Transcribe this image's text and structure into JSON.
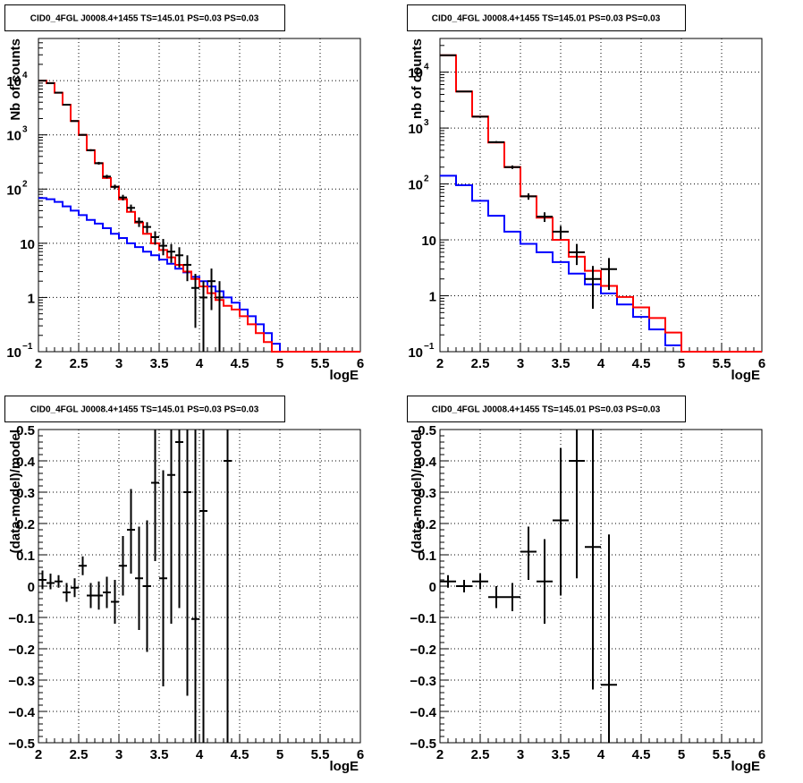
{
  "chart_data": [
    {
      "id": "p1",
      "type": "step-histogram",
      "title": "CID0_4FGL J0008.4+1455 TS=145.01 PS=0.03 PS=0.03",
      "xlabel": "logE",
      "ylabel": "Nb of counts",
      "xlim": [
        2,
        6
      ],
      "ylim": [
        0.1,
        60000
      ],
      "yscale": "log",
      "grid": true,
      "x_ticks": [
        "2",
        "2.5",
        "3",
        "3.5",
        "4",
        "4.5",
        "5",
        "5.5",
        "6"
      ],
      "y_ticks": [
        {
          "v": 0.1,
          "base": "10",
          "exp": "−1"
        },
        {
          "v": 1,
          "label": "1"
        },
        {
          "v": 10,
          "label": "10"
        },
        {
          "v": 100,
          "base": "10",
          "exp": "2"
        },
        {
          "v": 1000,
          "base": "10",
          "exp": "3"
        },
        {
          "v": 10000,
          "base": "10",
          "exp": "4"
        }
      ],
      "bin_edges": [
        2.0,
        2.1,
        2.2,
        2.3,
        2.4,
        2.5,
        2.6,
        2.7,
        2.8,
        2.9,
        3.0,
        3.1,
        3.2,
        3.3,
        3.4,
        3.5,
        3.6,
        3.7,
        3.8,
        3.9,
        4.0,
        4.1,
        4.2,
        4.3,
        4.4,
        4.5,
        4.6,
        4.7,
        4.8,
        4.9,
        5.0,
        5.1,
        5.2,
        5.3,
        5.4,
        5.5,
        5.6,
        5.7,
        5.8,
        5.9,
        6.0
      ],
      "series": [
        {
          "color": "#ff0000",
          "values": [
            10000,
            9000,
            6000,
            3600,
            1800,
            1000,
            520,
            300,
            160,
            110,
            65,
            38,
            24,
            15,
            10,
            7.5,
            5.5,
            4,
            3,
            2.2,
            1.6,
            1.2,
            0.9,
            0.7,
            0.6,
            0.45,
            0.32,
            0.22,
            0.15,
            0.1,
            0.1,
            0.1,
            0.1,
            0.1,
            0.1,
            0.1,
            0.1,
            0.1,
            0.1,
            0.1
          ]
        },
        {
          "color": "#0000ff",
          "values": [
            68,
            65,
            58,
            48,
            40,
            33,
            27,
            23,
            19,
            15,
            12.5,
            10,
            8.5,
            7,
            6,
            5,
            4.2,
            3.4,
            2.9,
            2.4,
            2,
            1.6,
            1.3,
            1,
            0.8,
            0.6,
            0.45,
            0.32,
            0.22,
            0.14,
            0.1,
            0.1,
            0.1,
            0.1,
            0.1,
            0.1,
            0.1,
            0.1,
            0.1,
            0.1
          ]
        }
      ],
      "points": [
        {
          "x": 2.05,
          "y": 10000
        },
        {
          "x": 2.15,
          "y": 9000
        },
        {
          "x": 2.25,
          "y": 6000
        },
        {
          "x": 2.35,
          "y": 3600
        },
        {
          "x": 2.45,
          "y": 1800
        },
        {
          "x": 2.55,
          "y": 1000
        },
        {
          "x": 2.65,
          "y": 520
        },
        {
          "x": 2.75,
          "y": 300
        },
        {
          "x": 2.85,
          "y": 170
        },
        {
          "x": 2.95,
          "y": 110
        },
        {
          "x": 3.05,
          "y": 70
        },
        {
          "x": 3.15,
          "y": 45
        },
        {
          "x": 3.25,
          "y": 25
        },
        {
          "x": 3.35,
          "y": 20
        },
        {
          "x": 3.45,
          "y": 13
        },
        {
          "x": 3.55,
          "y": 9
        },
        {
          "x": 3.65,
          "y": 7
        },
        {
          "x": 3.75,
          "y": 6
        },
        {
          "x": 3.85,
          "y": 4
        },
        {
          "x": 3.95,
          "y": 1.5
        },
        {
          "x": 4.05,
          "y": 1
        },
        {
          "x": 4.15,
          "y": 2
        },
        {
          "x": 4.25,
          "y": 1
        }
      ]
    },
    {
      "id": "p2",
      "type": "step-histogram",
      "title": "CID0_4FGL J0008.4+1455 TS=145.01 PS=0.03 PS=0.03",
      "xlabel": "logE",
      "ylabel": "nb of counts",
      "xlim": [
        2,
        6
      ],
      "ylim": [
        0.1,
        40000
      ],
      "yscale": "log",
      "grid": true,
      "x_ticks": [
        "2",
        "2.5",
        "3",
        "3.5",
        "4",
        "4.5",
        "5",
        "5.5",
        "6"
      ],
      "y_ticks": [
        {
          "v": 0.1,
          "base": "10",
          "exp": "−1"
        },
        {
          "v": 1,
          "label": "1"
        },
        {
          "v": 10,
          "label": "10"
        },
        {
          "v": 100,
          "base": "10",
          "exp": "2"
        },
        {
          "v": 1000,
          "base": "10",
          "exp": "3"
        },
        {
          "v": 10000,
          "base": "10",
          "exp": "4"
        }
      ],
      "bin_edges": [
        2.0,
        2.2,
        2.4,
        2.6,
        2.8,
        3.0,
        3.2,
        3.4,
        3.6,
        3.8,
        4.0,
        4.2,
        4.4,
        4.6,
        4.8,
        5.0,
        5.2,
        5.4,
        5.6,
        5.8,
        6.0
      ],
      "series": [
        {
          "color": "#ff0000",
          "values": [
            20000,
            4500,
            1600,
            550,
            200,
            60,
            25,
            10,
            5,
            2.8,
            1.5,
            0.95,
            0.62,
            0.4,
            0.22,
            0.1,
            0.1,
            0.1,
            0.1,
            0.1
          ]
        },
        {
          "color": "#0000ff",
          "values": [
            140,
            95,
            50,
            27,
            14,
            8.5,
            6,
            4,
            2.5,
            1.6,
            1.1,
            0.7,
            0.42,
            0.25,
            0.13,
            0.1,
            0.1,
            0.1,
            0.1,
            0.1
          ]
        }
      ],
      "points": [
        {
          "x": 2.1,
          "y": 20000
        },
        {
          "x": 2.3,
          "y": 4500
        },
        {
          "x": 2.5,
          "y": 1600
        },
        {
          "x": 2.7,
          "y": 560
        },
        {
          "x": 2.9,
          "y": 200
        },
        {
          "x": 3.1,
          "y": 60
        },
        {
          "x": 3.3,
          "y": 26
        },
        {
          "x": 3.5,
          "y": 14
        },
        {
          "x": 3.7,
          "y": 6
        },
        {
          "x": 3.9,
          "y": 2
        },
        {
          "x": 4.1,
          "y": 3
        }
      ]
    },
    {
      "id": "p3",
      "type": "scatter-errorbar",
      "title": "CID0_4FGL J0008.4+1455 TS=145.01 PS=0.03 PS=0.03",
      "xlabel": "logE",
      "ylabel": "(data-model)/model",
      "xlim": [
        2,
        6
      ],
      "ylim": [
        -0.5,
        0.5
      ],
      "grid": true,
      "x_ticks": [
        "2",
        "2.5",
        "3",
        "3.5",
        "4",
        "4.5",
        "5",
        "5.5",
        "6"
      ],
      "y_ticks": [
        {
          "v": -0.5,
          "label": "−0.5"
        },
        {
          "v": -0.4,
          "label": "−0.4"
        },
        {
          "v": -0.3,
          "label": "−0.3"
        },
        {
          "v": -0.2,
          "label": "−0.2"
        },
        {
          "v": -0.1,
          "label": "−0.1"
        },
        {
          "v": 0,
          "label": "0"
        },
        {
          "v": 0.1,
          "label": "0.1"
        },
        {
          "v": 0.2,
          "label": "0.2"
        },
        {
          "v": 0.3,
          "label": "0.3"
        },
        {
          "v": 0.4,
          "label": "0.4"
        },
        {
          "v": 0.5,
          "label": "0.5"
        }
      ],
      "xerr": 0.05,
      "points": [
        {
          "x": 2.05,
          "y": 0.02,
          "lo": -0.01,
          "hi": 0.05
        },
        {
          "x": 2.15,
          "y": 0.01,
          "lo": -0.01,
          "hi": 0.04
        },
        {
          "x": 2.25,
          "y": 0.015,
          "lo": -0.005,
          "hi": 0.035
        },
        {
          "x": 2.35,
          "y": -0.02,
          "lo": -0.05,
          "hi": 0.01
        },
        {
          "x": 2.45,
          "y": -0.005,
          "lo": -0.035,
          "hi": 0.025
        },
        {
          "x": 2.55,
          "y": 0.065,
          "lo": 0.035,
          "hi": 0.095
        },
        {
          "x": 2.65,
          "y": -0.03,
          "lo": -0.07,
          "hi": 0.01
        },
        {
          "x": 2.75,
          "y": -0.03,
          "lo": -0.075,
          "hi": 0.015
        },
        {
          "x": 2.85,
          "y": -0.02,
          "lo": -0.07,
          "hi": 0.03
        },
        {
          "x": 2.95,
          "y": -0.05,
          "lo": -0.12,
          "hi": 0.02
        },
        {
          "x": 3.05,
          "y": 0.065,
          "lo": -0.03,
          "hi": 0.16
        },
        {
          "x": 3.15,
          "y": 0.18,
          "lo": 0.04,
          "hi": 0.31
        },
        {
          "x": 3.25,
          "y": 0.025,
          "lo": -0.14,
          "hi": 0.19
        },
        {
          "x": 3.35,
          "y": 0.0,
          "lo": -0.21,
          "hi": 0.21
        },
        {
          "x": 3.45,
          "y": 0.33,
          "lo": 0.08,
          "hi": 0.5
        },
        {
          "x": 3.55,
          "y": 0.025,
          "lo": -0.32,
          "hi": 0.37
        },
        {
          "x": 3.65,
          "y": 0.355,
          "lo": -0.12,
          "hi": 0.5
        },
        {
          "x": 3.75,
          "y": 0.46,
          "lo": -0.07,
          "hi": 0.5
        },
        {
          "x": 3.85,
          "y": 0.3,
          "lo": -0.35,
          "hi": 0.5
        },
        {
          "x": 3.95,
          "y": -0.105,
          "lo": -0.5,
          "hi": 0.5
        },
        {
          "x": 4.05,
          "y": 0.24,
          "lo": -0.5,
          "hi": 0.5
        },
        {
          "x": 4.35,
          "y": 0.4,
          "lo": -0.5,
          "hi": 0.5
        }
      ]
    },
    {
      "id": "p4",
      "type": "scatter-errorbar",
      "title": "CID0_4FGL J0008.4+1455 TS=145.01 PS=0.03 PS=0.03",
      "xlabel": "logE",
      "ylabel": "(data-model)/model",
      "xlim": [
        2,
        6
      ],
      "ylim": [
        -0.5,
        0.5
      ],
      "grid": true,
      "x_ticks": [
        "2",
        "2.5",
        "3",
        "3.5",
        "4",
        "4.5",
        "5",
        "5.5",
        "6"
      ],
      "y_ticks": [
        {
          "v": -0.5,
          "label": "−0.5"
        },
        {
          "v": -0.4,
          "label": "−0.4"
        },
        {
          "v": -0.3,
          "label": "−0.3"
        },
        {
          "v": -0.2,
          "label": "−0.2"
        },
        {
          "v": -0.1,
          "label": "−0.1"
        },
        {
          "v": 0,
          "label": "0"
        },
        {
          "v": 0.1,
          "label": "0.1"
        },
        {
          "v": 0.2,
          "label": "0.2"
        },
        {
          "v": 0.3,
          "label": "0.3"
        },
        {
          "v": 0.4,
          "label": "0.4"
        },
        {
          "v": 0.5,
          "label": "0.5"
        }
      ],
      "xerr": 0.1,
      "points": [
        {
          "x": 2.1,
          "y": 0.015,
          "lo": -0.005,
          "hi": 0.035
        },
        {
          "x": 2.3,
          "y": 0.0,
          "lo": -0.02,
          "hi": 0.02
        },
        {
          "x": 2.5,
          "y": 0.015,
          "lo": -0.01,
          "hi": 0.04
        },
        {
          "x": 2.7,
          "y": -0.035,
          "lo": -0.07,
          "hi": 0.0
        },
        {
          "x": 2.9,
          "y": -0.035,
          "lo": -0.08,
          "hi": 0.01
        },
        {
          "x": 3.1,
          "y": 0.11,
          "lo": 0.02,
          "hi": 0.19
        },
        {
          "x": 3.3,
          "y": 0.015,
          "lo": -0.12,
          "hi": 0.15
        },
        {
          "x": 3.5,
          "y": 0.21,
          "lo": -0.03,
          "hi": 0.44
        },
        {
          "x": 3.7,
          "y": 0.4,
          "lo": 0.025,
          "hi": 0.5
        },
        {
          "x": 3.9,
          "y": 0.125,
          "lo": -0.33,
          "hi": 0.5
        },
        {
          "x": 4.1,
          "y": -0.315,
          "lo": -0.5,
          "hi": 0.165
        }
      ]
    }
  ]
}
